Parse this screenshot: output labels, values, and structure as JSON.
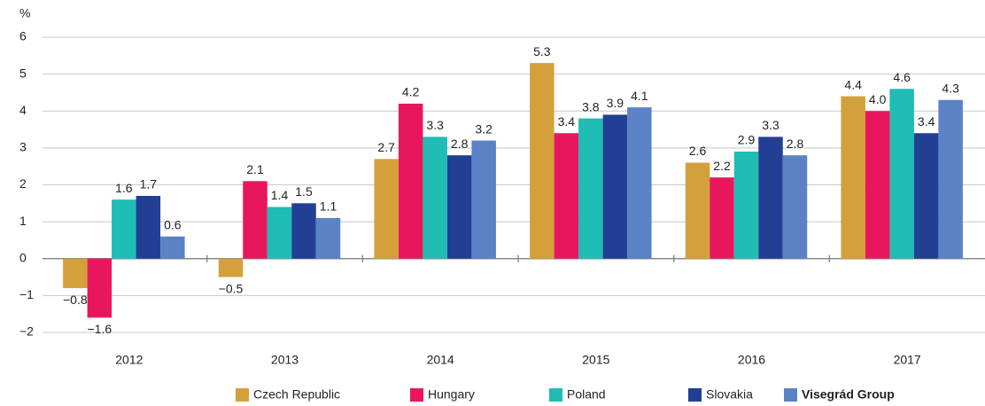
{
  "chart_data": {
    "type": "bar",
    "y_axis_label": "%",
    "categories": [
      "2012",
      "2013",
      "2014",
      "2015",
      "2016",
      "2017"
    ],
    "series": [
      {
        "name": "Czech Republic",
        "color": "#d4a03c",
        "values": [
          -0.8,
          -0.5,
          2.7,
          5.3,
          2.6,
          4.4
        ],
        "value_labels": [
          "−0.8",
          "−0.5",
          "2.7",
          "5.3",
          "2.6",
          "4.4"
        ]
      },
      {
        "name": "Hungary",
        "color": "#e8175d",
        "values": [
          -1.6,
          2.1,
          4.2,
          3.4,
          2.2,
          4.0
        ],
        "value_labels": [
          "−1.6",
          "2.1",
          "4.2",
          "3.4",
          "2.2",
          "4.0"
        ]
      },
      {
        "name": "Poland",
        "color": "#1fbdb3",
        "values": [
          1.6,
          1.4,
          3.3,
          3.8,
          2.9,
          4.6
        ],
        "value_labels": [
          "1.6",
          "1.4",
          "3.3",
          "3.8",
          "2.9",
          "4.6"
        ]
      },
      {
        "name": "Slovakia",
        "color": "#233f94",
        "values": [
          1.7,
          1.5,
          2.8,
          3.9,
          3.3,
          3.4
        ],
        "value_labels": [
          "1.7",
          "1.5",
          "2.8",
          "3.9",
          "3.3",
          "3.4"
        ]
      },
      {
        "name": "Visegrád Group",
        "color": "#5b82c4",
        "values": [
          0.6,
          1.1,
          3.2,
          4.1,
          2.8,
          4.3
        ],
        "value_labels": [
          "0.6",
          "1.1",
          "3.2",
          "4.1",
          "2.8",
          "4.3"
        ]
      }
    ],
    "ylim": [
      -2,
      6
    ],
    "yticks": [
      {
        "value": -2,
        "label": "−2"
      },
      {
        "value": -1,
        "label": "−1"
      },
      0,
      1,
      2,
      3,
      4,
      5,
      6
    ],
    "grid": true,
    "legend": "bottom"
  }
}
